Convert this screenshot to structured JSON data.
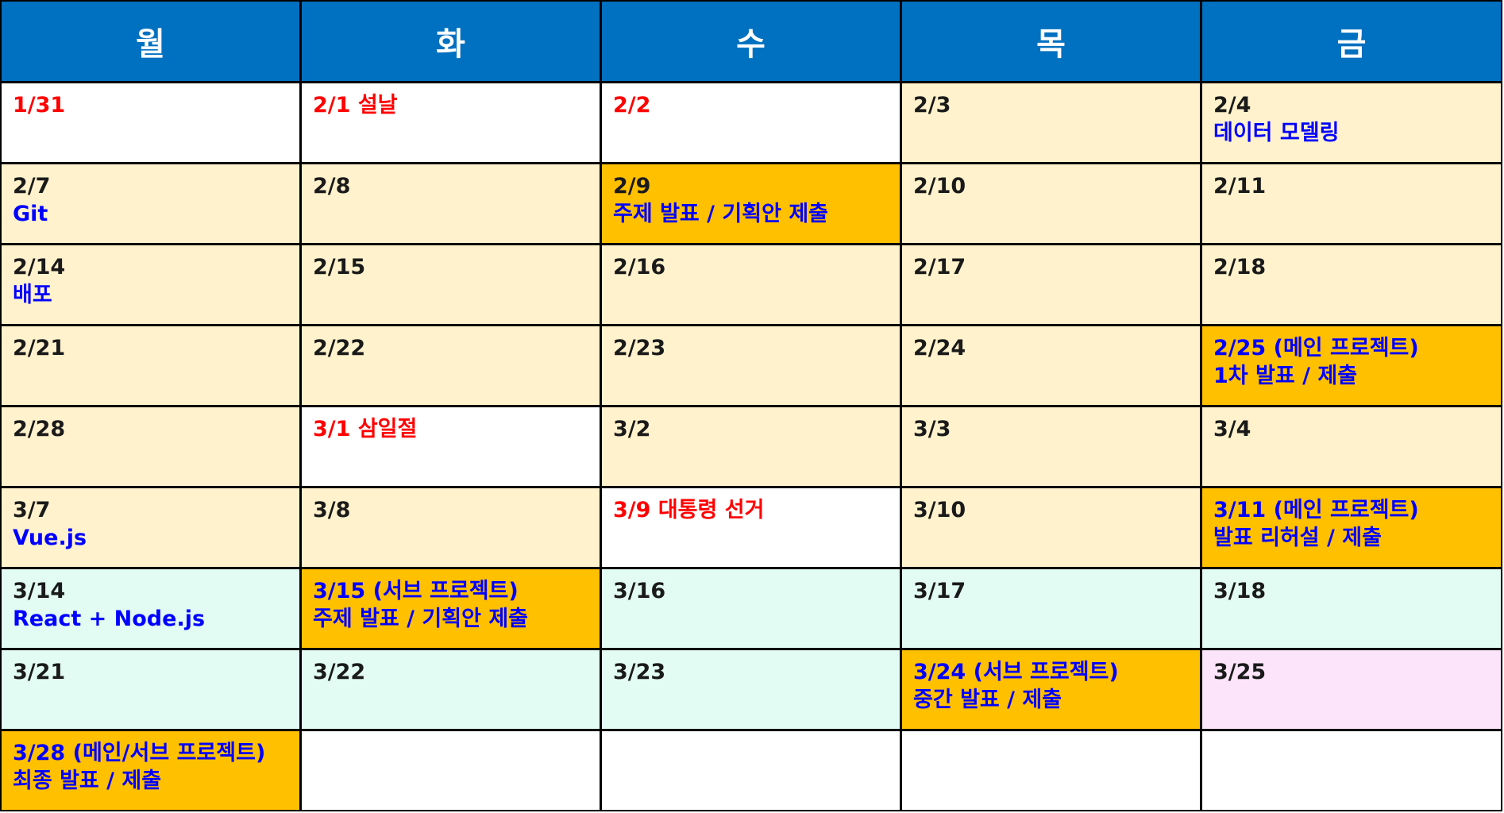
{
  "days": [
    "월",
    "화",
    "수",
    "목",
    "금"
  ],
  "rows": [
    [
      {
        "bg": "white",
        "lines": [
          {
            "text": "1/31",
            "color": "red"
          }
        ]
      },
      {
        "bg": "white",
        "lines": [
          {
            "text": "2/1 설날",
            "color": "red"
          }
        ]
      },
      {
        "bg": "white",
        "lines": [
          {
            "text": "2/2",
            "color": "red"
          }
        ]
      },
      {
        "bg": "cream",
        "lines": [
          {
            "text": "2/3",
            "color": "dark"
          }
        ]
      },
      {
        "bg": "cream",
        "lines": [
          {
            "text": "2/4",
            "color": "dark"
          },
          {
            "text": "데이터 모델링",
            "color": "blue"
          }
        ]
      }
    ],
    [
      {
        "bg": "cream",
        "lines": [
          {
            "text": "2/7",
            "color": "dark"
          },
          {
            "text": "Git",
            "color": "blue"
          }
        ]
      },
      {
        "bg": "cream",
        "lines": [
          {
            "text": "2/8",
            "color": "dark"
          }
        ]
      },
      {
        "bg": "gold",
        "lines": [
          {
            "text": "2/9",
            "color": "dark"
          },
          {
            "text": "주제 발표 / 기획안 제출",
            "color": "blue"
          }
        ]
      },
      {
        "bg": "cream",
        "lines": [
          {
            "text": "2/10",
            "color": "dark"
          }
        ]
      },
      {
        "bg": "cream",
        "lines": [
          {
            "text": "2/11",
            "color": "dark"
          }
        ]
      }
    ],
    [
      {
        "bg": "cream",
        "lines": [
          {
            "text": "2/14",
            "color": "dark"
          },
          {
            "text": "배포",
            "color": "blue"
          }
        ]
      },
      {
        "bg": "cream",
        "lines": [
          {
            "text": "2/15",
            "color": "dark"
          }
        ]
      },
      {
        "bg": "cream",
        "lines": [
          {
            "text": "2/16",
            "color": "dark"
          }
        ]
      },
      {
        "bg": "cream",
        "lines": [
          {
            "text": "2/17",
            "color": "dark"
          }
        ]
      },
      {
        "bg": "cream",
        "lines": [
          {
            "text": "2/18",
            "color": "dark"
          }
        ]
      }
    ],
    [
      {
        "bg": "cream",
        "lines": [
          {
            "text": "2/21",
            "color": "dark"
          }
        ]
      },
      {
        "bg": "cream",
        "lines": [
          {
            "text": "2/22",
            "color": "dark"
          }
        ]
      },
      {
        "bg": "cream",
        "lines": [
          {
            "text": "2/23",
            "color": "dark"
          }
        ]
      },
      {
        "bg": "cream",
        "lines": [
          {
            "text": "2/24",
            "color": "dark"
          }
        ]
      },
      {
        "bg": "gold",
        "lines": [
          {
            "text": "2/25  (메인 프로젝트)",
            "color": "blue"
          },
          {
            "text": "1차 발표 / 제출",
            "color": "blue"
          }
        ]
      }
    ],
    [
      {
        "bg": "cream",
        "lines": [
          {
            "text": "2/28",
            "color": "dark"
          }
        ]
      },
      {
        "bg": "white",
        "lines": [
          {
            "text": "3/1 삼일절",
            "color": "red"
          }
        ]
      },
      {
        "bg": "cream",
        "lines": [
          {
            "text": "3/2",
            "color": "dark"
          }
        ]
      },
      {
        "bg": "cream",
        "lines": [
          {
            "text": "3/3",
            "color": "dark"
          }
        ]
      },
      {
        "bg": "cream",
        "lines": [
          {
            "text": "3/4",
            "color": "dark"
          }
        ]
      }
    ],
    [
      {
        "bg": "cream",
        "lines": [
          {
            "text": "3/7",
            "color": "dark"
          },
          {
            "text": "Vue.js",
            "color": "blue"
          }
        ]
      },
      {
        "bg": "cream",
        "lines": [
          {
            "text": "3/8",
            "color": "dark"
          }
        ]
      },
      {
        "bg": "white",
        "lines": [
          {
            "text": "3/9 대통령 선거",
            "color": "red"
          }
        ]
      },
      {
        "bg": "cream",
        "lines": [
          {
            "text": "3/10",
            "color": "dark"
          }
        ]
      },
      {
        "bg": "gold",
        "lines": [
          {
            "text": "3/11 (메인 프로젝트)",
            "color": "blue"
          },
          {
            "text": "발표 리허설 / 제출",
            "color": "blue"
          }
        ]
      }
    ],
    [
      {
        "bg": "mint",
        "lines": [
          {
            "text": "3/14",
            "color": "dark"
          },
          {
            "text": "React + Node.js",
            "color": "blue"
          }
        ]
      },
      {
        "bg": "gold",
        "lines": [
          {
            "text": "3/15 (서브 프로젝트)",
            "color": "blue"
          },
          {
            "text": "주제 발표 / 기획안 제출",
            "color": "blue"
          }
        ]
      },
      {
        "bg": "mint",
        "lines": [
          {
            "text": "3/16",
            "color": "dark"
          }
        ]
      },
      {
        "bg": "mint",
        "lines": [
          {
            "text": "3/17",
            "color": "dark"
          }
        ]
      },
      {
        "bg": "mint",
        "lines": [
          {
            "text": "3/18",
            "color": "dark"
          }
        ]
      }
    ],
    [
      {
        "bg": "mint",
        "lines": [
          {
            "text": "3/21",
            "color": "dark"
          }
        ]
      },
      {
        "bg": "mint",
        "lines": [
          {
            "text": "3/22",
            "color": "dark"
          }
        ]
      },
      {
        "bg": "mint",
        "lines": [
          {
            "text": "3/23",
            "color": "dark"
          }
        ]
      },
      {
        "bg": "gold",
        "lines": [
          {
            "text": "3/24 (서브 프로젝트)",
            "color": "blue"
          },
          {
            "text": "중간 발표 / 제출",
            "color": "blue"
          }
        ]
      },
      {
        "bg": "pink",
        "lines": [
          {
            "text": "3/25",
            "color": "dark"
          }
        ]
      }
    ],
    [
      {
        "bg": "gold",
        "lines": [
          {
            "text": "3/28 (메인/서브 프로젝트)",
            "color": "blue"
          },
          {
            "text": "최종 발표 / 제출",
            "color": "blue"
          }
        ]
      },
      {
        "bg": "white",
        "lines": []
      },
      {
        "bg": "white",
        "lines": []
      },
      {
        "bg": "white",
        "lines": []
      },
      {
        "bg": "white",
        "lines": []
      }
    ]
  ]
}
